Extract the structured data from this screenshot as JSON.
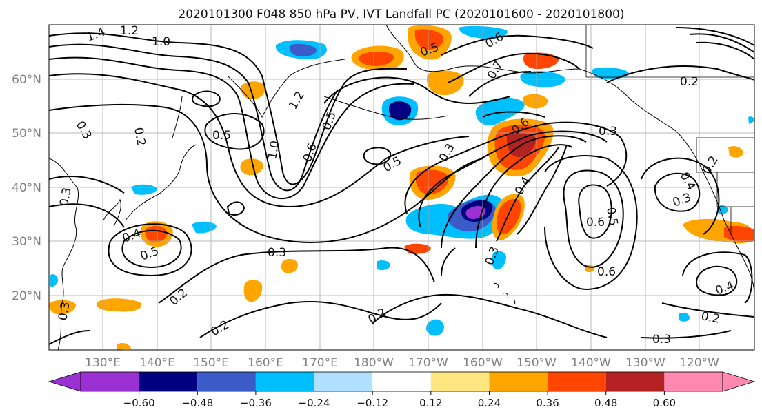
{
  "title": "2020101300 F048 850 hPa PV, IVT Landfall PC (2020101600 - 2020101800)",
  "map": {
    "lat_labels": [
      "60°N",
      "50°N",
      "40°N",
      "30°N",
      "20°N"
    ],
    "lon_labels": [
      "130°E",
      "140°E",
      "150°E",
      "160°E",
      "170°E",
      "180°W",
      "170°W",
      "160°W",
      "150°W",
      "140°W",
      "130°W",
      "120°W"
    ],
    "contour_labels": [
      "1.4",
      "1.2",
      "1.0",
      "0.3",
      "0.2",
      "0.5",
      "0.4",
      "0.3",
      "0.5",
      "1.2",
      "0.5",
      "0.6",
      "1.0",
      "0.5",
      "0.3",
      "0.7",
      "0.6",
      "0.6",
      "0.5",
      "0.3",
      "0.4",
      "0.6",
      "0.5",
      "0.6",
      "0.2",
      "0.4",
      "0.2",
      "0.3",
      "0.2",
      "0.3",
      "0.2",
      "0.4",
      "0.3",
      "0.2",
      "0.2",
      "0.3",
      "0.3"
    ]
  },
  "colorbar": {
    "colors": [
      "#9b30d3",
      "#000080",
      "#3a5bc8",
      "#00bfff",
      "#b0e0ff",
      "#ffffff",
      "#ffe680",
      "#ffa500",
      "#ff4500",
      "#b22222",
      "#ff88b0"
    ],
    "ticks": [
      "−0.60",
      "−0.48",
      "−0.36",
      "−0.24",
      "−0.12",
      "0.12",
      "0.24",
      "0.36",
      "0.48",
      "0.60"
    ]
  }
}
